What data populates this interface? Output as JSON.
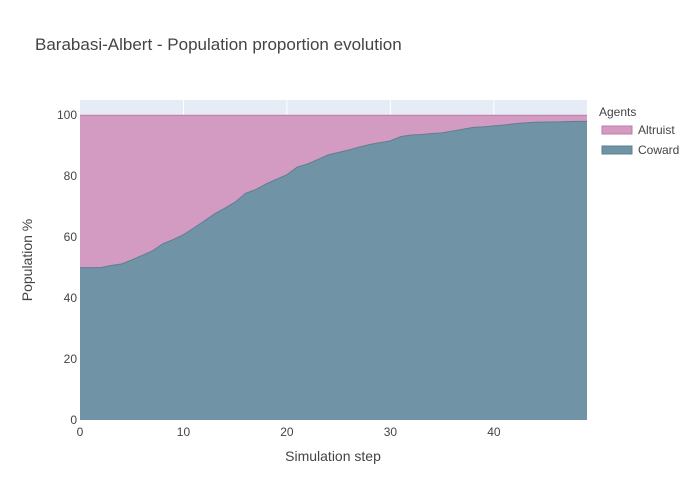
{
  "colors": {
    "altruist_fill": "#d39bc1",
    "altruist_line": "#c07aac",
    "coward_fill": "#7094a6",
    "coward_line": "#5d7f91",
    "plot_bg": "#e5ecf6",
    "grid": "#ffffff"
  },
  "chart_data": {
    "type": "area",
    "stacked": true,
    "title": "Barabasi-Albert - Population proportion evolution",
    "xlabel": "Simulation step",
    "ylabel": "Population %",
    "xlim": [
      0,
      49
    ],
    "ylim": [
      0,
      105
    ],
    "x_ticks": [
      0,
      10,
      20,
      30,
      40
    ],
    "y_ticks": [
      0,
      20,
      40,
      60,
      80,
      100
    ],
    "grid": true,
    "legend": {
      "title": "Agents",
      "position": "top-right"
    },
    "x": [
      0,
      1,
      2,
      3,
      4,
      5,
      6,
      7,
      8,
      9,
      10,
      11,
      12,
      13,
      14,
      15,
      16,
      17,
      18,
      19,
      20,
      21,
      22,
      23,
      24,
      25,
      26,
      27,
      28,
      29,
      30,
      31,
      32,
      33,
      34,
      35,
      36,
      37,
      38,
      39,
      40,
      41,
      42,
      43,
      44,
      45,
      46,
      47,
      48,
      49
    ],
    "series": [
      {
        "name": "Coward",
        "color": "#7094a6",
        "values": [
          50,
          50,
          50,
          50.7,
          51.2,
          52.5,
          54,
          55.5,
          57.8,
          59.2,
          60.8,
          63,
          65.3,
          67.6,
          69.5,
          71.5,
          74.4,
          75.6,
          77.5,
          79,
          80.5,
          83,
          84,
          85.5,
          87,
          87.8,
          88.6,
          89.6,
          90.4,
          91,
          91.6,
          93,
          93.5,
          93.7,
          94,
          94.2,
          94.8,
          95.4,
          96,
          96.2,
          96.5,
          96.8,
          97.2,
          97.5,
          97.7,
          97.8,
          97.8,
          97.9,
          98,
          98
        ]
      },
      {
        "name": "Altruist",
        "color": "#d39bc1",
        "values": [
          50,
          50,
          50,
          49.3,
          48.8,
          47.5,
          46,
          44.5,
          42.2,
          40.8,
          39.2,
          37,
          34.7,
          32.4,
          30.5,
          28.5,
          25.6,
          24.4,
          22.5,
          21,
          19.5,
          17,
          16,
          14.5,
          13,
          12.2,
          11.4,
          10.4,
          9.6,
          9,
          8.4,
          7,
          6.5,
          6.3,
          6,
          5.8,
          5.2,
          4.6,
          4,
          3.8,
          3.5,
          3.2,
          2.8,
          2.5,
          2.3,
          2.2,
          2.2,
          2.1,
          2,
          2
        ]
      }
    ]
  }
}
